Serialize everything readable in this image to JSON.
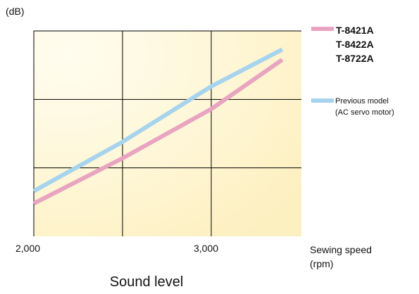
{
  "chart_data": {
    "type": "line",
    "title": "Sound level",
    "ylabel": "(dB)",
    "xlabel": "Sewing speed",
    "xlabel_unit": "(rpm)",
    "xlim": [
      2000,
      3000
    ],
    "x_ticks": [
      "2,000",
      "3,000"
    ],
    "grid": true,
    "legend_position": "right",
    "series": [
      {
        "name": [
          "T-8421A",
          "T-8422A",
          "T-8722A"
        ],
        "color": "#e8a4c0",
        "x": [
          2000,
          2500,
          3000,
          3400
        ],
        "y": [
          0.16,
          0.38,
          0.62,
          0.86
        ]
      },
      {
        "name": [
          "Previous model",
          "(AC servo motor)"
        ],
        "color": "#a6d3ee",
        "x": [
          2000,
          2500,
          3000,
          3400
        ],
        "y": [
          0.22,
          0.46,
          0.73,
          0.91
        ]
      }
    ]
  }
}
